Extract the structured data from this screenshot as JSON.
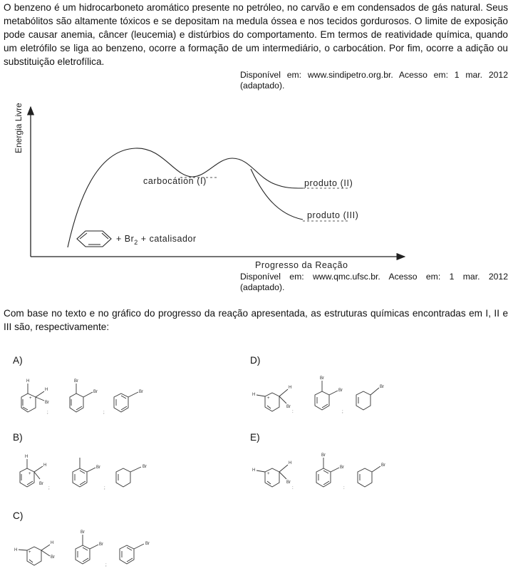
{
  "intro_text": "O benzeno é um hidrocarboneto aromático presente no petróleo, no carvão e em condensados de gás natural. Seus metabólitos são altamente tóxicos e se depositam na medula óssea e nos tecidos gordurosos. O limite de exposição pode causar anemia, câncer (leucemia) e distúrbios do comportamento. Em termos de reatividade química, quando um eletrófilo se liga ao benzeno, ocorre a formação de um intermediário, o carbocátion. Por fim, ocorre a adição ou substituição eletrofílica.",
  "source_1": "Disponível em: www.sindipetro.org.br. Acesso em: 1 mar. 2012 (adaptado).",
  "source_2": "Disponível em: www.qmc.ufsc.br. Acesso em: 1 mar. 2012 (adaptado).",
  "graph": {
    "y_label": "Energia Livre",
    "x_label": "Progresso da Reação",
    "carbocation_label": "carbocátion (I)",
    "product_2_label": "produto (II)",
    "product_3_label": "produto (III)",
    "reactants_plus": "+ Br",
    "reactants_sub": "2",
    "reactants_rest": "+ catalisador"
  },
  "question": "Com base no texto e no gráfico do progresso da reação apresentada, as estruturas químicas encontradas em I, II e III são, respectivamente:",
  "options": [
    {
      "letter": "A)"
    },
    {
      "letter": "B)"
    },
    {
      "letter": "C)"
    },
    {
      "letter": "D)"
    },
    {
      "letter": "E)"
    }
  ],
  "atoms": {
    "H": "H",
    "Br": "Br",
    "plus": "+"
  },
  "separators": {
    "semicolon": ";",
    "colon": ":"
  }
}
